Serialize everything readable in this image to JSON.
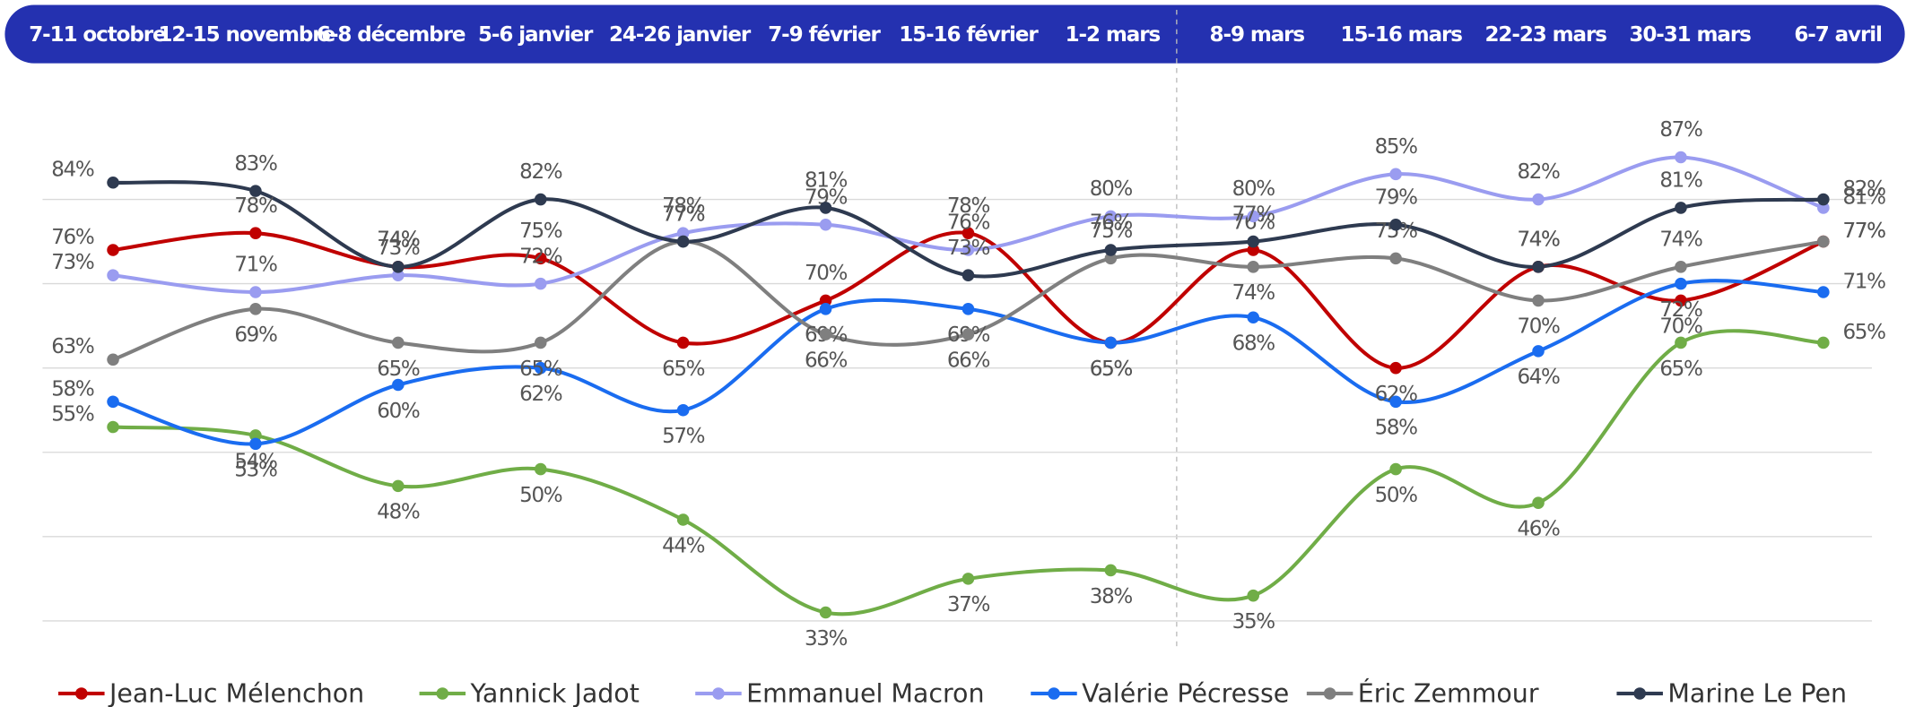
{
  "chart_data": {
    "type": "line",
    "categories": [
      "7-11 octobre",
      "12-15 novembre",
      "6-8 décembre",
      "5-6 janvier",
      "24-26 janvier",
      "7-9 février",
      "15-16 février",
      "1-2 mars",
      "8-9 mars",
      "15-16 mars",
      "22-23 mars",
      "30-31 mars",
      "6-7 avril"
    ],
    "series": [
      {
        "name": "Jean-Luc Mélenchon",
        "color": "#c00000",
        "values": [
          76,
          78,
          74,
          75,
          65,
          70,
          78,
          65,
          76,
          62,
          74,
          70,
          77
        ],
        "value_labels": [
          "76%",
          "78%",
          "74%",
          "75%",
          "65%",
          "70%",
          "78%",
          "65%",
          "76%",
          "62%",
          "74%",
          "70%",
          "77%"
        ]
      },
      {
        "name": "Yannick Jadot",
        "color": "#70ad47",
        "values": [
          55,
          54,
          48,
          50,
          44,
          33,
          37,
          38,
          35,
          50,
          46,
          65,
          65
        ],
        "value_labels": [
          "55%",
          "54%",
          "48%",
          "50%",
          "44%",
          "33%",
          "37%",
          "38%",
          "35%",
          "50%",
          "46%",
          "65%",
          "65%"
        ]
      },
      {
        "name": "Emmanuel Macron",
        "color": "#9a9cf0",
        "values": [
          73,
          71,
          73,
          72,
          78,
          79,
          76,
          80,
          80,
          85,
          82,
          87,
          81
        ],
        "value_labels": [
          "73%",
          "71%",
          "73%",
          "72%",
          "78%",
          "79%",
          "76%",
          "80%",
          "80%",
          "85%",
          "82%",
          "87%",
          "81%"
        ]
      },
      {
        "name": "Valérie Pécresse",
        "color": "#1a6cf0",
        "values": [
          58,
          53,
          60,
          62,
          57,
          69,
          69,
          65,
          68,
          58,
          64,
          72,
          71
        ],
        "value_labels": [
          "58%",
          "53%",
          "60%",
          "62%",
          "57%",
          "69%",
          "69%",
          "65%",
          "68%",
          "58%",
          "64%",
          "72%",
          "71%"
        ]
      },
      {
        "name": "Éric Zemmour",
        "color": "#7f7f7f",
        "values": [
          63,
          69,
          65,
          65,
          77,
          66,
          66,
          75,
          74,
          75,
          70,
          74,
          77
        ],
        "value_labels": [
          "63%",
          "69%",
          "65%",
          "65%",
          "77%",
          "66%",
          "66%",
          "75%",
          "74%",
          "75%",
          "70%",
          "74%",
          "77%"
        ]
      },
      {
        "name": "Marine Le Pen",
        "color": "#2e3a50",
        "values": [
          84,
          83,
          74,
          82,
          77,
          81,
          73,
          76,
          77,
          79,
          74,
          81,
          82
        ],
        "value_labels": [
          "84%",
          "83%",
          "74%",
          "82%",
          "77%",
          "81%",
          "73%",
          "76%",
          "77%",
          "79%",
          "74%",
          "81%",
          "82%"
        ]
      }
    ],
    "ylim": [
      29,
      97
    ],
    "yticks": [
      32,
      42,
      52,
      62,
      72,
      82
    ],
    "grid": true,
    "legend": "bottom"
  }
}
